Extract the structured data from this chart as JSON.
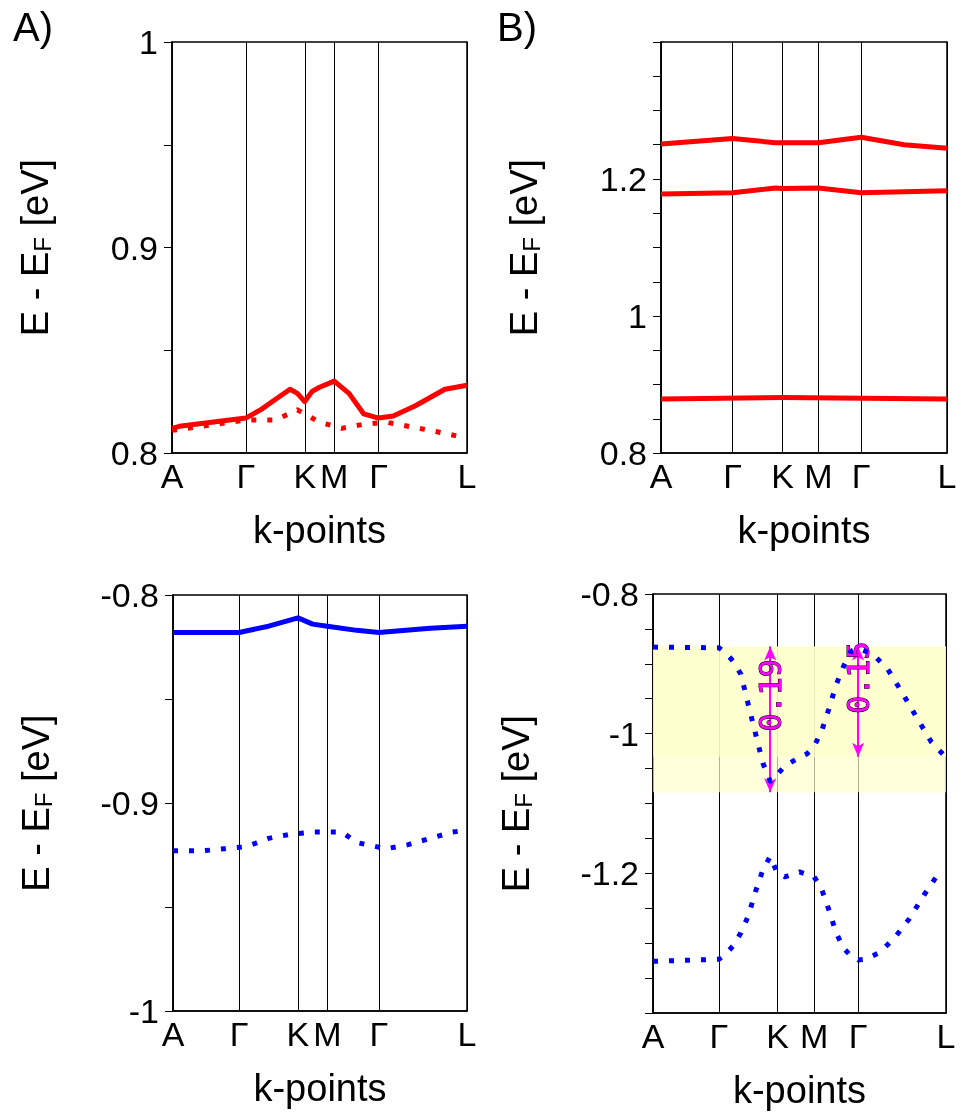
{
  "chart_data": [
    {
      "type": "line",
      "title": "A)",
      "xlabel": "k-points",
      "ylabel": "E - E$_{F}$ [eV]",
      "ylim": [
        0.8,
        1
      ],
      "categories": [
        "A",
        null,
        null,
        null,
        null,
        null,
        null,
        null,
        null,
        null,
        "Γ",
        null,
        null,
        null,
        null,
        null,
        null,
        null,
        "K",
        null,
        null,
        null,
        "M",
        null,
        null,
        null,
        null,
        null,
        "Γ",
        null,
        null,
        null,
        null,
        null,
        null,
        null,
        null,
        null,
        null,
        null,
        "L"
      ],
      "yticks": [
        0.8,
        {
          "value": 0.85,
          "label": null
        },
        0.9,
        {
          "value": 0.95,
          "label": null
        },
        1
      ],
      "grid": "x",
      "marker": "none",
      "series": [
        {
          "color": "#ff0000",
          "line_style": "solid",
          "values": [
            0.812,
            0.813,
            null,
            null,
            null,
            null,
            null,
            null,
            null,
            null,
            0.817,
            null,
            0.821,
            null,
            0.826,
            null,
            0.831,
            0.829,
            0.825,
            0.83,
            0.832,
            null,
            0.835,
            null,
            0.829,
            null,
            0.819,
            null,
            0.817,
            null,
            0.818,
            null,
            null,
            0.823,
            null,
            0.827,
            null,
            0.831,
            null,
            null,
            0.833
          ]
        },
        {
          "color": "#ff0000",
          "line_style": "dotted",
          "values": [
            0.811,
            null,
            null,
            null,
            null,
            null,
            null,
            null,
            null,
            null,
            0.816,
            null,
            null,
            null,
            0.816,
            null,
            null,
            0.821,
            null,
            null,
            0.815,
            null,
            null,
            0.812,
            null,
            null,
            0.814,
            null,
            null,
            0.815,
            null,
            null,
            0.813,
            null,
            null,
            0.811,
            null,
            null,
            null,
            0.808,
            null
          ]
        }
      ]
    },
    {
      "type": "line",
      "title": "B)",
      "xlabel": "k-points",
      "ylabel": "E - E$_{F}$ [eV]",
      "ylim": [
        0.8,
        1.4
      ],
      "categories": [
        "A",
        null,
        null,
        null,
        null,
        null,
        null,
        null,
        null,
        null,
        "Γ",
        null,
        null,
        null,
        null,
        null,
        null,
        "K",
        null,
        null,
        null,
        null,
        "M",
        null,
        null,
        null,
        null,
        null,
        "Γ",
        null,
        null,
        null,
        null,
        null,
        null,
        null,
        null,
        null,
        null,
        null,
        "L"
      ],
      "yticks": [
        0.8,
        {
          "value": 0.85,
          "label": null
        },
        {
          "value": 0.9,
          "label": null
        },
        {
          "value": 0.95,
          "label": null
        },
        1,
        {
          "value": 1.05,
          "label": null
        },
        {
          "value": 1.1,
          "label": null
        },
        {
          "value": 1.15,
          "label": null
        },
        1.2,
        {
          "value": 1.25,
          "label": null
        },
        {
          "value": 1.3,
          "label": null
        },
        {
          "value": 1.35,
          "label": null
        },
        {
          "value": 1.4,
          "label": null
        }
      ],
      "grid": "x",
      "marker": "none",
      "series": [
        {
          "color": "#ff0000",
          "line_style": "solid",
          "values": [
            1.251,
            null,
            null,
            null,
            null,
            null,
            null,
            null,
            null,
            null,
            1.259,
            null,
            null,
            null,
            null,
            null,
            1.253,
            null,
            null,
            null,
            null,
            null,
            1.253,
            null,
            null,
            null,
            null,
            null,
            1.261,
            null,
            null,
            null,
            null,
            null,
            1.25,
            null,
            null,
            null,
            null,
            null,
            1.245
          ]
        },
        {
          "color": "#ff0000",
          "line_style": "solid",
          "values": [
            1.178,
            null,
            null,
            null,
            null,
            null,
            null,
            null,
            null,
            null,
            1.18,
            null,
            null,
            null,
            null,
            null,
            1.187,
            1.186,
            null,
            null,
            null,
            null,
            1.187,
            null,
            null,
            null,
            null,
            null,
            1.18,
            null,
            null,
            null,
            null,
            null,
            null,
            null,
            null,
            null,
            null,
            null,
            1.183
          ]
        },
        {
          "color": "#ff0000",
          "line_style": "solid",
          "values": [
            0.879,
            null,
            null,
            null,
            null,
            null,
            null,
            null,
            null,
            null,
            null,
            null,
            null,
            null,
            null,
            null,
            null,
            0.881,
            null,
            null,
            null,
            null,
            null,
            null,
            null,
            null,
            null,
            null,
            null,
            null,
            null,
            null,
            null,
            null,
            null,
            null,
            null,
            null,
            null,
            null,
            0.879
          ]
        }
      ]
    },
    {
      "type": "line",
      "xlabel": "k-points",
      "ylabel": "E - E$_{F}$ [eV]",
      "ylim": [
        -1,
        -0.8
      ],
      "categories": [
        "A",
        null,
        null,
        null,
        null,
        null,
        null,
        null,
        null,
        "Γ",
        null,
        null,
        null,
        null,
        null,
        null,
        null,
        "K",
        null,
        null,
        null,
        "M",
        null,
        null,
        null,
        null,
        null,
        null,
        "Γ",
        null,
        null,
        null,
        null,
        null,
        null,
        null,
        null,
        null,
        null,
        null,
        "L"
      ],
      "yticks": [
        -1,
        {
          "value": -0.95,
          "label": null
        },
        -0.9,
        {
          "value": -0.85,
          "label": null
        },
        -0.8
      ],
      "grid": "x",
      "marker": "none",
      "series": [
        {
          "color": "#0000ff",
          "line_style": "solid",
          "values": [
            -0.818,
            null,
            null,
            null,
            null,
            null,
            null,
            null,
            null,
            -0.818,
            null,
            null,
            null,
            -0.815,
            null,
            null,
            null,
            -0.811,
            null,
            -0.814,
            null,
            -0.815,
            null,
            null,
            null,
            -0.817,
            null,
            null,
            -0.818,
            null,
            null,
            null,
            null,
            null,
            null,
            -0.816,
            null,
            null,
            null,
            null,
            -0.815
          ]
        },
        {
          "color": "#0000ff",
          "line_style": "dotted",
          "values": [
            -0.923,
            null,
            null,
            null,
            -0.923,
            null,
            null,
            -0.922,
            null,
            null,
            -0.921,
            null,
            null,
            -0.917,
            null,
            null,
            -0.915,
            null,
            null,
            -0.914,
            null,
            null,
            null,
            -0.914,
            null,
            -0.919,
            null,
            null,
            null,
            -0.922,
            null,
            null,
            -0.92,
            null,
            null,
            -0.917,
            null,
            null,
            -0.914,
            null,
            -0.913
          ]
        }
      ]
    },
    {
      "type": "line",
      "xlabel": "k-points",
      "ylabel": "E - E$_{F}$ [eV]",
      "ylim": [
        -1.4,
        -0.8
      ],
      "categories": [
        "A",
        null,
        null,
        null,
        null,
        null,
        null,
        null,
        null,
        "Γ",
        null,
        null,
        null,
        null,
        null,
        null,
        null,
        "K",
        null,
        null,
        null,
        null,
        "M",
        null,
        null,
        null,
        null,
        null,
        "Γ",
        null,
        null,
        null,
        null,
        null,
        null,
        null,
        null,
        null,
        null,
        null,
        "L"
      ],
      "yticks": [
        {
          "value": -1.4,
          "label": null
        },
        {
          "value": -1.35,
          "label": null
        },
        {
          "value": -1.3,
          "label": null
        },
        {
          "value": -1.25,
          "label": null
        },
        -1.2,
        {
          "value": -1.15,
          "label": null
        },
        {
          "value": -1.1,
          "label": null
        },
        {
          "value": -1.05,
          "label": null
        },
        -1,
        {
          "value": -0.95,
          "label": null
        },
        {
          "value": -0.9,
          "label": null
        },
        {
          "value": -0.85,
          "label": null
        },
        -0.8
      ],
      "grid": "x",
      "marker": "none",
      "bands": [
        {
          "axis": "y",
          "from": -1.084,
          "to": -0.875,
          "color": "#ffffcc"
        },
        {
          "axis": "y",
          "from": -1.033,
          "to": -0.875,
          "color": "#ffffcc"
        }
      ],
      "annotations": [
        "0.19",
        "0.15"
      ],
      "series": [
        {
          "color": "#0000ff",
          "line_style": "dotted",
          "values": [
            -0.876,
            null,
            null,
            null,
            null,
            null,
            null,
            null,
            null,
            -0.877,
            -0.885,
            -0.897,
            -0.915,
            -0.958,
            -1.0,
            -1.042,
            -1.068,
            -1.058,
            -1.046,
            null,
            -1.034,
            -1.029,
            -1.018,
            -0.997,
            -0.965,
            -0.93,
            -0.904,
            -0.882,
            -0.878,
            null,
            -0.886,
            null,
            -0.907,
            null,
            -0.941,
            null,
            -0.977,
            null,
            -1.012,
            null,
            -1.034
          ]
        },
        {
          "color": "#0000ff",
          "line_style": "dotted",
          "values": [
            -1.326,
            null,
            null,
            null,
            null,
            null,
            null,
            null,
            null,
            -1.323,
            -1.315,
            -1.303,
            -1.285,
            -1.261,
            -1.226,
            -1.195,
            -1.176,
            -1.2,
            -1.205,
            null,
            -1.198,
            null,
            -1.205,
            -1.222,
            -1.252,
            -1.285,
            -1.307,
            -1.318,
            -1.324,
            -1.323,
            null,
            -1.313,
            null,
            -1.292,
            null,
            -1.265,
            null,
            -1.231,
            null,
            -1.2,
            null
          ]
        }
      ]
    }
  ]
}
